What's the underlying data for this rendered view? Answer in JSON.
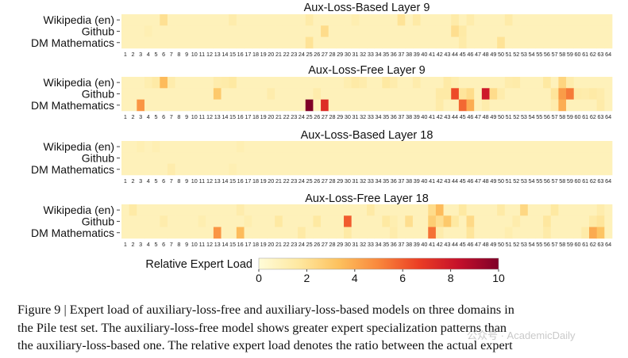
{
  "chart_data": [
    {
      "type": "heatmap",
      "title": "Aux-Loss-Based Layer 9",
      "rows": [
        "Wikipedia (en)",
        "Github",
        "DM Mathematics"
      ],
      "columns": [
        "1",
        "2",
        "3",
        "4",
        "5",
        "6",
        "7",
        "8",
        "9",
        "10",
        "11",
        "12",
        "13",
        "14",
        "15",
        "16",
        "17",
        "18",
        "19",
        "20",
        "21",
        "22",
        "23",
        "24",
        "25",
        "26",
        "27",
        "28",
        "29",
        "30",
        "31",
        "32",
        "33",
        "34",
        "35",
        "36",
        "37",
        "38",
        "39",
        "40",
        "41",
        "42",
        "43",
        "44",
        "45",
        "46",
        "47",
        "48",
        "49",
        "50",
        "51",
        "52",
        "53",
        "54",
        "55",
        "56",
        "57",
        "58",
        "59",
        "60",
        "61",
        "62",
        "63",
        "64"
      ],
      "values": [
        [
          0.9,
          0.9,
          0.9,
          0.9,
          0.9,
          2.0,
          0.9,
          0.9,
          0.9,
          0.9,
          0.9,
          0.9,
          0.9,
          0.9,
          1.3,
          0.9,
          0.9,
          0.9,
          0.9,
          0.9,
          0.9,
          0.9,
          0.9,
          0.9,
          1.4,
          0.9,
          0.9,
          0.9,
          0.9,
          0.9,
          1.2,
          0.9,
          0.9,
          0.9,
          0.9,
          0.9,
          1.9,
          0.9,
          1.5,
          0.9,
          0.9,
          0.9,
          0.9,
          1.4,
          0.9,
          1.3,
          0.9,
          0.9,
          0.9,
          0.9,
          1.4,
          0.9,
          0.9,
          0.9,
          0.9,
          0.9,
          0.9,
          0.9,
          0.9,
          0.9,
          0.9,
          0.9,
          0.9,
          0.9
        ],
        [
          0.9,
          0.9,
          0.9,
          1.1,
          0.9,
          0.9,
          0.9,
          0.9,
          0.9,
          0.9,
          0.9,
          0.9,
          0.9,
          0.9,
          0.9,
          0.9,
          0.9,
          0.9,
          0.9,
          0.9,
          0.9,
          0.9,
          0.9,
          0.9,
          0.9,
          0.9,
          2.2,
          0.9,
          0.9,
          0.9,
          0.9,
          0.9,
          0.9,
          0.9,
          0.9,
          0.9,
          0.9,
          0.9,
          0.9,
          0.9,
          0.9,
          0.9,
          0.9,
          2.1,
          1.5,
          0.9,
          0.9,
          0.9,
          0.9,
          0.9,
          0.9,
          0.9,
          0.9,
          0.9,
          0.9,
          0.9,
          0.9,
          0.9,
          0.9,
          0.9,
          0.9,
          0.9,
          0.9,
          0.9
        ],
        [
          0.9,
          0.9,
          0.9,
          0.9,
          0.9,
          0.9,
          0.9,
          0.9,
          0.9,
          0.9,
          0.9,
          0.9,
          0.9,
          0.9,
          0.9,
          0.9,
          0.9,
          0.9,
          0.9,
          0.9,
          0.9,
          0.9,
          0.9,
          0.9,
          1.9,
          0.9,
          0.9,
          0.9,
          0.9,
          0.9,
          0.9,
          0.9,
          0.9,
          0.9,
          0.9,
          0.9,
          0.9,
          0.9,
          0.9,
          0.9,
          0.9,
          0.9,
          0.9,
          0.9,
          1.4,
          0.9,
          0.9,
          0.9,
          0.9,
          1.9,
          0.9,
          0.9,
          0.9,
          0.9,
          0.9,
          0.9,
          0.9,
          0.9,
          0.9,
          0.9,
          0.9,
          0.9,
          0.9,
          0.9
        ]
      ]
    },
    {
      "type": "heatmap",
      "title": "Aux-Loss-Free Layer 9",
      "rows": [
        "Wikipedia (en)",
        "Github",
        "DM Mathematics"
      ],
      "columns": [
        "1",
        "2",
        "3",
        "4",
        "5",
        "6",
        "7",
        "8",
        "9",
        "10",
        "11",
        "12",
        "13",
        "14",
        "15",
        "16",
        "17",
        "18",
        "19",
        "20",
        "21",
        "22",
        "23",
        "24",
        "25",
        "26",
        "27",
        "28",
        "29",
        "30",
        "31",
        "32",
        "33",
        "34",
        "35",
        "36",
        "37",
        "38",
        "39",
        "40",
        "41",
        "42",
        "43",
        "44",
        "45",
        "46",
        "47",
        "48",
        "49",
        "50",
        "51",
        "52",
        "53",
        "54",
        "55",
        "56",
        "57",
        "58",
        "59",
        "60",
        "61",
        "62",
        "63",
        "64"
      ],
      "values": [
        [
          0.9,
          0.9,
          0.9,
          1.2,
          1.5,
          3.5,
          1.3,
          0.9,
          0.9,
          0.9,
          0.9,
          0.9,
          1.3,
          1.4,
          1.6,
          0.9,
          0.9,
          0.9,
          0.9,
          0.9,
          0.9,
          0.9,
          0.9,
          0.9,
          0.9,
          0.9,
          0.9,
          0.9,
          0.9,
          1.2,
          1.5,
          1.3,
          0.9,
          0.9,
          1.6,
          1.3,
          0.9,
          0.9,
          1.3,
          0.9,
          0.9,
          0.9,
          1.5,
          1.2,
          0.9,
          0.9,
          0.9,
          0.9,
          0.9,
          0.9,
          1.3,
          1.4,
          0.9,
          0.9,
          0.9,
          1.6,
          0.9,
          2.5,
          1.3,
          0.9,
          0.9,
          0.9,
          0.9,
          0.9
        ],
        [
          0.9,
          0.9,
          0.9,
          0.9,
          0.9,
          0.9,
          0.9,
          0.9,
          0.9,
          0.9,
          0.9,
          0.9,
          3.0,
          0.9,
          0.9,
          0.9,
          0.9,
          0.9,
          0.9,
          1.3,
          0.9,
          0.9,
          0.9,
          0.9,
          0.9,
          1.3,
          0.9,
          0.9,
          0.9,
          0.9,
          0.9,
          0.9,
          0.9,
          0.9,
          0.9,
          0.9,
          0.9,
          0.9,
          0.9,
          0.9,
          0.9,
          1.5,
          1.5,
          6.4,
          1.8,
          2.2,
          0.9,
          8.0,
          2.2,
          1.3,
          0.9,
          0.9,
          0.9,
          0.9,
          0.9,
          0.9,
          1.8,
          4.4,
          5.3,
          1.4,
          1.3,
          1.5,
          1.3,
          0.9
        ],
        [
          0.9,
          0.9,
          4.6,
          0.9,
          0.9,
          0.9,
          0.9,
          0.9,
          0.9,
          0.9,
          0.9,
          0.9,
          0.9,
          0.9,
          0.9,
          0.9,
          0.9,
          0.9,
          0.9,
          0.9,
          0.9,
          0.9,
          0.9,
          0.9,
          10.0,
          0.9,
          7.3,
          0.9,
          0.9,
          0.9,
          0.9,
          0.9,
          0.9,
          0.9,
          0.9,
          0.9,
          0.9,
          0.9,
          0.9,
          0.9,
          0.9,
          1.4,
          0.9,
          0.9,
          5.7,
          3.9,
          0.9,
          1.3,
          0.9,
          0.9,
          0.9,
          0.9,
          0.9,
          0.9,
          0.9,
          0.9,
          1.3,
          3.9,
          0.9,
          0.9,
          0.9,
          0.9,
          1.4,
          0.9
        ]
      ]
    },
    {
      "type": "heatmap",
      "title": "Aux-Loss-Based Layer 18",
      "rows": [
        "Wikipedia (en)",
        "Github",
        "DM Mathematics"
      ],
      "columns": [
        "1",
        "2",
        "3",
        "4",
        "5",
        "6",
        "7",
        "8",
        "9",
        "10",
        "11",
        "12",
        "13",
        "14",
        "15",
        "16",
        "17",
        "18",
        "19",
        "20",
        "21",
        "22",
        "23",
        "24",
        "25",
        "26",
        "27",
        "28",
        "29",
        "30",
        "31",
        "32",
        "33",
        "34",
        "35",
        "36",
        "37",
        "38",
        "39",
        "40",
        "41",
        "42",
        "43",
        "44",
        "45",
        "46",
        "47",
        "48",
        "49",
        "50",
        "51",
        "52",
        "53",
        "54",
        "55",
        "56",
        "57",
        "58",
        "59",
        "60",
        "61",
        "62",
        "63",
        "64"
      ],
      "values": [
        [
          0.9,
          0.9,
          1.1,
          0.9,
          1.1,
          0.9,
          0.9,
          0.9,
          0.9,
          0.9,
          0.9,
          0.9,
          0.9,
          0.9,
          0.9,
          1.1,
          0.9,
          0.9,
          0.9,
          0.9,
          0.9,
          0.9,
          0.9,
          0.9,
          0.9,
          0.9,
          0.9,
          0.9,
          0.9,
          0.9,
          0.9,
          0.9,
          0.9,
          0.9,
          0.9,
          0.9,
          0.9,
          0.9,
          0.9,
          0.9,
          0.9,
          0.9,
          0.9,
          0.9,
          0.9,
          0.9,
          0.9,
          0.9,
          0.9,
          0.9,
          0.9,
          0.9,
          0.9,
          0.9,
          0.9,
          0.9,
          0.9,
          0.9,
          0.9,
          0.9,
          0.9,
          0.9,
          0.9,
          0.9
        ],
        [
          0.9,
          0.9,
          0.9,
          0.9,
          0.9,
          0.9,
          0.9,
          0.9,
          0.9,
          0.9,
          0.9,
          0.9,
          0.9,
          0.9,
          0.9,
          0.9,
          0.9,
          0.9,
          0.9,
          0.9,
          0.9,
          0.9,
          0.9,
          0.9,
          0.9,
          0.9,
          0.9,
          0.9,
          0.9,
          0.9,
          0.9,
          0.9,
          0.9,
          0.9,
          0.9,
          0.9,
          0.9,
          0.9,
          0.9,
          0.9,
          0.9,
          0.9,
          0.9,
          0.9,
          0.9,
          0.9,
          0.9,
          0.9,
          0.9,
          0.9,
          0.9,
          0.9,
          0.9,
          0.9,
          0.9,
          0.9,
          0.9,
          0.9,
          0.9,
          0.9,
          0.9,
          0.9,
          0.9,
          0.9
        ],
        [
          0.9,
          0.9,
          0.9,
          0.9,
          0.9,
          0.9,
          1.3,
          0.9,
          0.9,
          0.9,
          0.9,
          0.9,
          0.9,
          0.9,
          1.1,
          0.9,
          0.9,
          0.9,
          0.9,
          0.9,
          0.9,
          0.9,
          0.9,
          0.9,
          0.9,
          0.9,
          0.9,
          0.9,
          0.9,
          0.9,
          0.9,
          0.9,
          0.9,
          0.9,
          0.9,
          0.9,
          0.9,
          0.9,
          0.9,
          0.9,
          0.9,
          0.9,
          0.9,
          0.9,
          0.9,
          0.9,
          0.9,
          0.9,
          0.9,
          0.9,
          0.9,
          0.9,
          0.9,
          0.9,
          0.9,
          0.9,
          0.9,
          0.9,
          0.9,
          0.9,
          0.9,
          0.9,
          0.9,
          0.9
        ]
      ]
    },
    {
      "type": "heatmap",
      "title": "Aux-Loss-Free Layer 18",
      "rows": [
        "Wikipedia (en)",
        "Github",
        "DM Mathematics"
      ],
      "columns": [
        "1",
        "2",
        "3",
        "4",
        "5",
        "6",
        "7",
        "8",
        "9",
        "10",
        "11",
        "12",
        "13",
        "14",
        "15",
        "16",
        "17",
        "18",
        "19",
        "20",
        "21",
        "22",
        "23",
        "24",
        "25",
        "26",
        "27",
        "28",
        "29",
        "30",
        "31",
        "32",
        "33",
        "34",
        "35",
        "36",
        "37",
        "38",
        "39",
        "40",
        "41",
        "42",
        "43",
        "44",
        "45",
        "46",
        "47",
        "48",
        "49",
        "50",
        "51",
        "52",
        "53",
        "54",
        "55",
        "56",
        "57",
        "58",
        "59",
        "60",
        "61",
        "62",
        "63",
        "64"
      ],
      "values": [
        [
          0.9,
          1.5,
          0.9,
          0.9,
          0.9,
          0.9,
          0.9,
          0.9,
          0.9,
          0.9,
          0.9,
          0.9,
          0.9,
          0.9,
          0.9,
          1.3,
          0.9,
          0.9,
          0.9,
          0.9,
          0.9,
          0.9,
          0.9,
          0.9,
          0.9,
          0.9,
          0.9,
          0.9,
          0.9,
          0.9,
          0.9,
          0.9,
          1.5,
          0.9,
          0.9,
          0.9,
          0.9,
          0.9,
          0.9,
          0.9,
          2.2,
          3.5,
          0.9,
          0.9,
          1.6,
          0.9,
          0.9,
          0.9,
          0.9,
          1.5,
          0.9,
          0.9,
          2.4,
          0.9,
          0.9,
          0.9,
          1.6,
          0.9,
          0.9,
          0.9,
          0.9,
          0.9,
          1.3,
          0.9
        ],
        [
          0.9,
          0.9,
          0.9,
          0.9,
          0.9,
          1.3,
          0.9,
          0.9,
          0.9,
          0.9,
          1.2,
          0.9,
          0.9,
          0.9,
          0.9,
          0.9,
          1.2,
          0.9,
          0.9,
          0.9,
          1.6,
          0.9,
          0.9,
          0.9,
          0.9,
          1.6,
          0.9,
          0.9,
          0.9,
          6.0,
          0.9,
          0.9,
          0.9,
          0.9,
          1.6,
          1.2,
          0.9,
          2.1,
          0.9,
          0.9,
          2.8,
          2.1,
          3.0,
          1.6,
          0.9,
          2.3,
          0.9,
          0.9,
          0.9,
          0.9,
          0.9,
          1.3,
          0.9,
          0.9,
          0.9,
          1.7,
          0.9,
          0.9,
          0.9,
          0.9,
          0.9,
          1.5,
          1.8,
          0.9
        ],
        [
          0.9,
          0.9,
          0.9,
          0.9,
          0.9,
          0.9,
          0.9,
          0.9,
          0.9,
          0.9,
          0.9,
          0.9,
          4.6,
          0.9,
          0.9,
          3.5,
          0.9,
          0.9,
          0.9,
          0.9,
          0.9,
          0.9,
          0.9,
          1.5,
          0.9,
          0.9,
          0.9,
          0.9,
          0.9,
          1.5,
          0.9,
          0.9,
          0.9,
          0.9,
          0.9,
          1.3,
          0.9,
          0.9,
          0.9,
          0.9,
          5.5,
          1.3,
          0.9,
          0.9,
          0.9,
          1.8,
          0.9,
          0.9,
          0.9,
          0.9,
          1.2,
          0.9,
          0.9,
          0.9,
          0.9,
          1.4,
          0.9,
          0.9,
          0.9,
          0.9,
          1.4,
          4.0,
          3.2,
          0.9
        ]
      ]
    }
  ],
  "colorbar": {
    "label": "Relative Expert Load",
    "ticks": [
      "0",
      "2",
      "4",
      "6",
      "8",
      "10"
    ],
    "range": [
      0,
      10
    ],
    "colors": [
      "#fffcd8",
      "#fee8a0",
      "#fdc15e",
      "#f9873c",
      "#eb3e24",
      "#c5102b",
      "#7f0028"
    ]
  },
  "caption": {
    "line1": "Figure 9 | Expert load of auxiliary-loss-free and auxiliary-loss-based models on three domains in",
    "line2": "the Pile test set. The auxiliary-loss-free model shows greater expert specialization patterns than",
    "line3": "the auxiliary-loss-based one. The relative expert load denotes the ratio between the actual expert"
  },
  "watermark": "公众号 · AcademicDaily"
}
